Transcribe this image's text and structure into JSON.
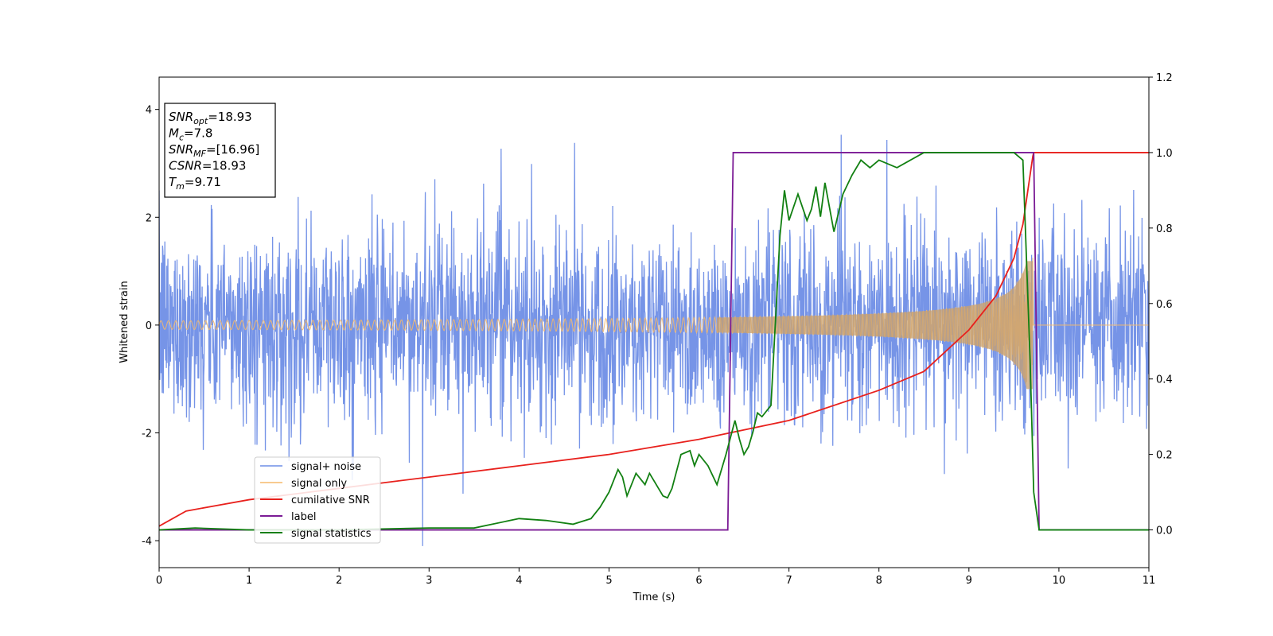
{
  "chart_data": {
    "type": "line",
    "xlabel": "Time (s)",
    "ylabel": "Whitened strain",
    "xlim": [
      0,
      11
    ],
    "ylim": [
      -4.5,
      4.6
    ],
    "y2lim": [
      -0.1,
      1.2
    ],
    "xticks": [
      "0",
      "1",
      "2",
      "3",
      "4",
      "5",
      "6",
      "7",
      "8",
      "9",
      "10",
      "11"
    ],
    "yticks": [
      "-4",
      "-2",
      "0",
      "2",
      "4"
    ],
    "y2ticks": [
      "0.0",
      "0.2",
      "0.4",
      "0.6",
      "0.8",
      "1.0",
      "1.2"
    ],
    "grid": false,
    "legend_position": "lower-left",
    "info_box": {
      "lines": [
        {
          "sym": "SNR",
          "sub": "opt",
          "rest": "=18.93"
        },
        {
          "sym": "M",
          "sub": "c",
          "rest": "=7.8"
        },
        {
          "sym": "SNR",
          "sub": "MF",
          "rest": "=[16.96]"
        },
        {
          "sym": "CSNR",
          "sub": "",
          "rest": "=18.93"
        },
        {
          "sym": "T",
          "sub": "m",
          "rest": "=9.71"
        }
      ]
    },
    "series": [
      {
        "name": "signal+ noise",
        "color": "#6f8ee6",
        "axis": "left",
        "kind": "noise",
        "std": 0.9,
        "t_end": 11
      },
      {
        "name": "signal only",
        "color": "#f5b96b",
        "axis": "left",
        "kind": "chirp",
        "t_merger": 9.71,
        "amp_start": 0.08,
        "amp_peak": 1.25
      },
      {
        "name": "cumilative SNR",
        "color": "#e8211d",
        "axis": "right",
        "x": [
          0,
          0.3,
          1,
          2,
          3,
          4,
          5,
          6,
          7,
          8,
          8.5,
          9,
          9.3,
          9.5,
          9.6,
          9.71,
          9.72,
          11
        ],
        "y": [
          0.01,
          0.05,
          0.08,
          0.11,
          0.14,
          0.17,
          0.2,
          0.24,
          0.29,
          0.37,
          0.42,
          0.53,
          0.62,
          0.72,
          0.81,
          0.99,
          1.0,
          1.0
        ]
      },
      {
        "name": "label",
        "color": "#7b1b95",
        "axis": "right",
        "x": [
          0,
          6.32,
          6.38,
          9.72,
          9.78,
          11
        ],
        "y": [
          0,
          0,
          1,
          1,
          0,
          0
        ]
      },
      {
        "name": "signal statistics",
        "color": "#128012",
        "axis": "right",
        "x": [
          0,
          0.4,
          1,
          2,
          3,
          3.5,
          4,
          4.3,
          4.6,
          4.8,
          4.9,
          5.0,
          5.1,
          5.15,
          5.2,
          5.3,
          5.4,
          5.45,
          5.5,
          5.6,
          5.65,
          5.7,
          5.8,
          5.9,
          5.95,
          6.0,
          6.1,
          6.2,
          6.3,
          6.4,
          6.45,
          6.5,
          6.55,
          6.6,
          6.65,
          6.7,
          6.8,
          6.9,
          6.95,
          7.0,
          7.1,
          7.2,
          7.25,
          7.3,
          7.35,
          7.4,
          7.5,
          7.6,
          7.7,
          7.8,
          7.9,
          8.0,
          8.2,
          8.5,
          8.8,
          9.0,
          9.5,
          9.6,
          9.68,
          9.72,
          9.78,
          11
        ],
        "y": [
          0,
          0.005,
          0,
          0,
          0.005,
          0.005,
          0.03,
          0.025,
          0.015,
          0.03,
          0.06,
          0.1,
          0.16,
          0.14,
          0.09,
          0.15,
          0.12,
          0.15,
          0.13,
          0.09,
          0.085,
          0.11,
          0.2,
          0.21,
          0.17,
          0.2,
          0.17,
          0.12,
          0.2,
          0.29,
          0.24,
          0.2,
          0.22,
          0.26,
          0.31,
          0.3,
          0.33,
          0.78,
          0.9,
          0.82,
          0.89,
          0.82,
          0.85,
          0.91,
          0.83,
          0.92,
          0.79,
          0.89,
          0.94,
          0.98,
          0.96,
          0.98,
          0.96,
          1.0,
          1.0,
          1.0,
          1.0,
          0.98,
          0.45,
          0.1,
          0.0,
          0.0
        ]
      }
    ]
  }
}
